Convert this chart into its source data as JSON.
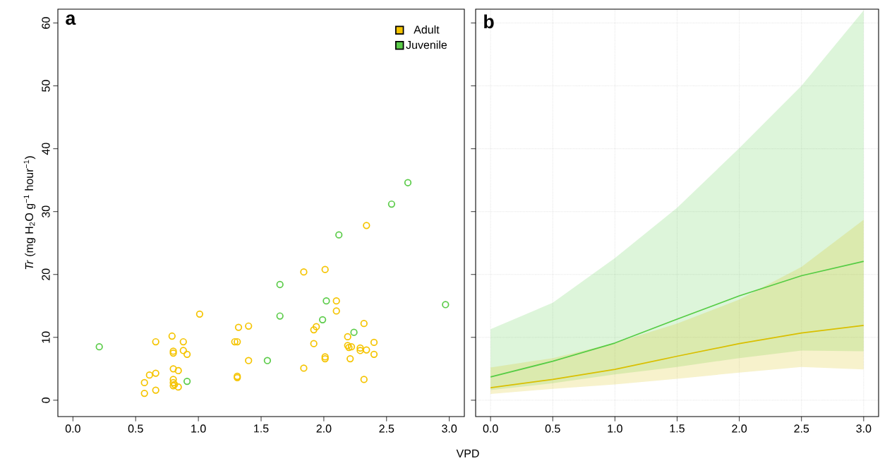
{
  "chart_data": [
    {
      "type": "scatter",
      "title": "a",
      "xlabel": "VPD",
      "ylabel": "*Tr* (mg H$_{2}$O g$^{−1}$ hour$^{−1}$)",
      "marker": "circle",
      "legend": "top right",
      "xlim": [
        -0.12,
        3.12
      ],
      "ylim": [
        -2.6,
        62.2
      ],
      "xticks": [
        {
          "value": 0,
          "label": "0.0"
        },
        {
          "value": 0.5,
          "label": "0.5"
        },
        {
          "value": 1,
          "label": "1.0"
        },
        {
          "value": 1.5,
          "label": "1.5"
        },
        {
          "value": 2,
          "label": "2.0"
        },
        {
          "value": 2.5,
          "label": "2.5"
        },
        {
          "value": 3,
          "label": "3.0"
        }
      ],
      "yticks": [
        0,
        10,
        20,
        30,
        40,
        50,
        60
      ],
      "series": [
        {
          "name": "Adult",
          "color": "#f5c400",
          "x": [
            0.66,
            0.79,
            0.88,
            0.8,
            0.8,
            0.88,
            0.91,
            1.01,
            1.32,
            1.4,
            1.29,
            1.31,
            1.4,
            1.31,
            1.31,
            0.8,
            0.84,
            0.61,
            0.66,
            0.57,
            0.57,
            0.66,
            0.8,
            0.8,
            0.81,
            0.84,
            0.8,
            2.34,
            1.84,
            2.01,
            2.1,
            2.1,
            1.92,
            1.94,
            2.32,
            1.92,
            2.19,
            2.4,
            2.19,
            2.2,
            2.22,
            2.29,
            2.29,
            2.34,
            2.4,
            2.21,
            2.01,
            2.01,
            1.84,
            2.32
          ],
          "values": [
            9.3,
            10.2,
            9.3,
            7.5,
            7.8,
            7.9,
            7.3,
            13.7,
            11.6,
            11.8,
            9.3,
            9.3,
            6.3,
            3.8,
            3.6,
            5.0,
            4.7,
            4.0,
            4.3,
            2.8,
            1.1,
            1.6,
            3.3,
            2.8,
            2.5,
            2.1,
            2.3,
            27.8,
            20.4,
            20.8,
            15.8,
            14.2,
            11.2,
            11.7,
            12.2,
            9.0,
            10.1,
            9.2,
            8.7,
            8.4,
            8.5,
            8.3,
            7.9,
            8.0,
            7.3,
            6.6,
            6.9,
            6.6,
            5.1,
            3.3
          ]
        },
        {
          "name": "Juvenile",
          "color": "#5ccc4a",
          "x": [
            0.21,
            0.91,
            1.55,
            1.65,
            1.65,
            2.67,
            2.54,
            2.12,
            2.02,
            1.99,
            2.24,
            2.97
          ],
          "values": [
            8.5,
            3.0,
            6.3,
            18.4,
            13.4,
            34.6,
            31.2,
            26.3,
            15.8,
            12.8,
            10.8,
            15.2
          ]
        }
      ]
    },
    {
      "type": "line",
      "title": "b",
      "grid": true,
      "tick_labels": "x",
      "xlim": [
        -0.12,
        3.12
      ],
      "ylim": [
        -2.6,
        62.2
      ],
      "xticks": [
        {
          "value": 0,
          "label": "0.0"
        },
        {
          "value": 0.5,
          "label": "0.5"
        },
        {
          "value": 1,
          "label": "1.0"
        },
        {
          "value": 1.5,
          "label": "1.5"
        },
        {
          "value": 2,
          "label": "2.0"
        },
        {
          "value": 2.5,
          "label": "2.5"
        },
        {
          "value": 3,
          "label": "3.0"
        }
      ],
      "yticks": [
        0,
        10,
        20,
        30,
        40,
        50,
        60
      ],
      "x": [
        0,
        0.5,
        1,
        1.5,
        2,
        2.5,
        3
      ],
      "series": [
        {
          "color": "#55cc44",
          "values": [
            3.7,
            6.2,
            9.1,
            12.9,
            16.6,
            19.8,
            22.1
          ],
          "lower": [
            1.6,
            2.7,
            4.1,
            5.3,
            6.7,
            7.9,
            7.8
          ],
          "upper": [
            11.3,
            15.5,
            22.6,
            30.6,
            40.1,
            50.0,
            62.0
          ]
        },
        {
          "color": "#d9bf00",
          "values": [
            2.0,
            3.3,
            4.9,
            7.0,
            9.0,
            10.7,
            11.9
          ],
          "lower": [
            1.0,
            1.8,
            2.5,
            3.4,
            4.4,
            5.3,
            4.9
          ],
          "upper": [
            5.2,
            6.7,
            9.1,
            12.2,
            16.0,
            21.2,
            28.7
          ]
        }
      ]
    }
  ]
}
